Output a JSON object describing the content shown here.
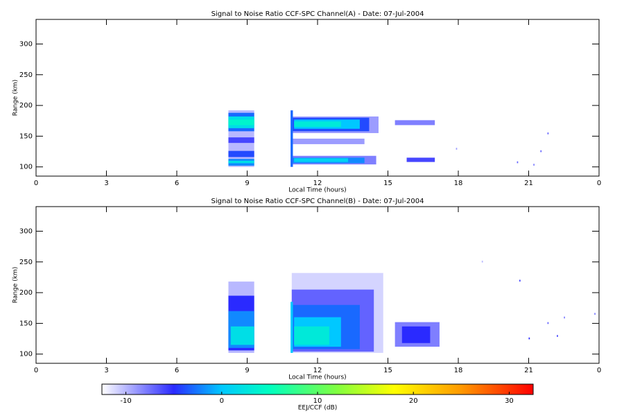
{
  "chart_data": [
    {
      "type": "heatmap",
      "title": "Signal to Noise Ratio CCF-SPC Channel(A) - Date: 07-Jul-2004",
      "x_label": "Local Time (hours)",
      "y_label": "Range (km)",
      "xlim": [
        0,
        24
      ],
      "xticks": [
        0,
        3,
        6,
        9,
        12,
        15,
        18,
        21,
        {
          "value": 24,
          "label": "0"
        }
      ],
      "ylim": [
        85,
        340
      ],
      "yticks": [
        100,
        150,
        200,
        250,
        300
      ],
      "cells": [
        {
          "x": [
            8.2,
            9.3
          ],
          "y": [
            100,
            192
          ],
          "value": -10
        },
        {
          "x": [
            8.2,
            9.3
          ],
          "y": [
            158,
            188
          ],
          "value": -3
        },
        {
          "x": [
            8.2,
            9.3
          ],
          "y": [
            163,
            182
          ],
          "value": 2
        },
        {
          "x": [
            8.2,
            9.3
          ],
          "y": [
            168,
            177
          ],
          "value": 4
        },
        {
          "x": [
            8.2,
            9.3
          ],
          "y": [
            139,
            148
          ],
          "value": -6
        },
        {
          "x": [
            8.2,
            9.3
          ],
          "y": [
            116,
            126
          ],
          "value": -4
        },
        {
          "x": [
            8.2,
            9.3
          ],
          "y": [
            102,
            113
          ],
          "value": -2
        },
        {
          "x": [
            8.2,
            9.3
          ],
          "y": [
            106,
            110
          ],
          "value": 2
        },
        {
          "x": [
            10.9,
            14.6
          ],
          "y": [
            155,
            182
          ],
          "value": -9
        },
        {
          "x": [
            10.9,
            14.2
          ],
          "y": [
            158,
            180
          ],
          "value": -4
        },
        {
          "x": [
            11.0,
            13.8
          ],
          "y": [
            162,
            177
          ],
          "value": 0
        },
        {
          "x": [
            11.0,
            13.0
          ],
          "y": [
            165,
            174
          ],
          "value": 3
        },
        {
          "x": [
            10.9,
            14.0
          ],
          "y": [
            137,
            146
          ],
          "value": -9
        },
        {
          "x": [
            10.9,
            14.5
          ],
          "y": [
            104,
            118
          ],
          "value": -8
        },
        {
          "x": [
            10.9,
            14.0
          ],
          "y": [
            106,
            115
          ],
          "value": -2
        },
        {
          "x": [
            11.0,
            13.3
          ],
          "y": [
            108,
            114
          ],
          "value": 1
        },
        {
          "x": [
            10.85,
            10.95
          ],
          "y": [
            100,
            192
          ],
          "value": -3
        },
        {
          "x": [
            15.3,
            17.0
          ],
          "y": [
            168,
            176
          ],
          "value": -8
        },
        {
          "x": [
            15.8,
            17.0
          ],
          "y": [
            108,
            115
          ],
          "value": -6
        },
        {
          "x": [
            17.9,
            17.95
          ],
          "y": [
            128,
            131
          ],
          "value": -9
        },
        {
          "x": [
            21.8,
            21.85
          ],
          "y": [
            153,
            156
          ],
          "value": -7
        },
        {
          "x": [
            21.5,
            21.55
          ],
          "y": [
            124,
            127
          ],
          "value": -7
        },
        {
          "x": [
            20.5,
            20.55
          ],
          "y": [
            106,
            109
          ],
          "value": -7
        },
        {
          "x": [
            21.2,
            21.25
          ],
          "y": [
            102,
            105
          ],
          "value": -8
        }
      ]
    },
    {
      "type": "heatmap",
      "title": "Signal to Noise Ratio CCF-SPC Channel(B) - Date: 07-Jul-2004",
      "x_label": "Local Time (hours)",
      "y_label": "Range (km)",
      "xlim": [
        0,
        24
      ],
      "xticks": [
        0,
        3,
        6,
        9,
        12,
        15,
        18,
        21,
        {
          "value": 24,
          "label": "0"
        }
      ],
      "ylim": [
        85,
        340
      ],
      "yticks": [
        100,
        150,
        200,
        250,
        300
      ],
      "cells": [
        {
          "x": [
            8.2,
            9.3
          ],
          "y": [
            102,
            218
          ],
          "value": -10
        },
        {
          "x": [
            8.2,
            9.3
          ],
          "y": [
            106,
            195
          ],
          "value": -5
        },
        {
          "x": [
            8.2,
            9.3
          ],
          "y": [
            110,
            170
          ],
          "value": -2
        },
        {
          "x": [
            8.3,
            9.3
          ],
          "y": [
            115,
            145
          ],
          "value": 2
        },
        {
          "x": [
            10.9,
            14.8
          ],
          "y": [
            102,
            232
          ],
          "value": -11
        },
        {
          "x": [
            10.9,
            14.4
          ],
          "y": [
            104,
            205
          ],
          "value": -7
        },
        {
          "x": [
            10.9,
            13.8
          ],
          "y": [
            108,
            180
          ],
          "value": -3
        },
        {
          "x": [
            11.0,
            13.0
          ],
          "y": [
            112,
            160
          ],
          "value": 0
        },
        {
          "x": [
            11.0,
            12.5
          ],
          "y": [
            115,
            145
          ],
          "value": 3
        },
        {
          "x": [
            10.85,
            10.95
          ],
          "y": [
            102,
            185
          ],
          "value": 0
        },
        {
          "x": [
            15.3,
            17.2
          ],
          "y": [
            112,
            152
          ],
          "value": -8
        },
        {
          "x": [
            15.6,
            16.8
          ],
          "y": [
            118,
            145
          ],
          "value": -5
        },
        {
          "x": [
            20.6,
            20.65
          ],
          "y": [
            218,
            221
          ],
          "value": -6
        },
        {
          "x": [
            21.8,
            21.85
          ],
          "y": [
            149,
            152
          ],
          "value": -7
        },
        {
          "x": [
            22.5,
            22.55
          ],
          "y": [
            158,
            161
          ],
          "value": -8
        },
        {
          "x": [
            23.8,
            23.85
          ],
          "y": [
            164,
            167
          ],
          "value": -8
        },
        {
          "x": [
            19.0,
            19.05
          ],
          "y": [
            249,
            252
          ],
          "value": -10
        },
        {
          "x": [
            22.2,
            22.25
          ],
          "y": [
            128,
            131
          ],
          "value": -6
        },
        {
          "x": [
            21.0,
            21.05
          ],
          "y": [
            124,
            127
          ],
          "value": -5
        }
      ]
    }
  ],
  "colorbar": {
    "label": "EEJ/CCF (dB)",
    "clim": [
      -12.5,
      32.5
    ],
    "ticks": [
      -10,
      0,
      10,
      20,
      30
    ],
    "colorscale": [
      [
        -12.5,
        "#ffffff"
      ],
      [
        -5,
        "#2a2aff"
      ],
      [
        0,
        "#00c8ff"
      ],
      [
        5,
        "#00ffc0"
      ],
      [
        12,
        "#80ff40"
      ],
      [
        18,
        "#ffff00"
      ],
      [
        25,
        "#ff9900"
      ],
      [
        32.5,
        "#ff0000"
      ]
    ]
  }
}
